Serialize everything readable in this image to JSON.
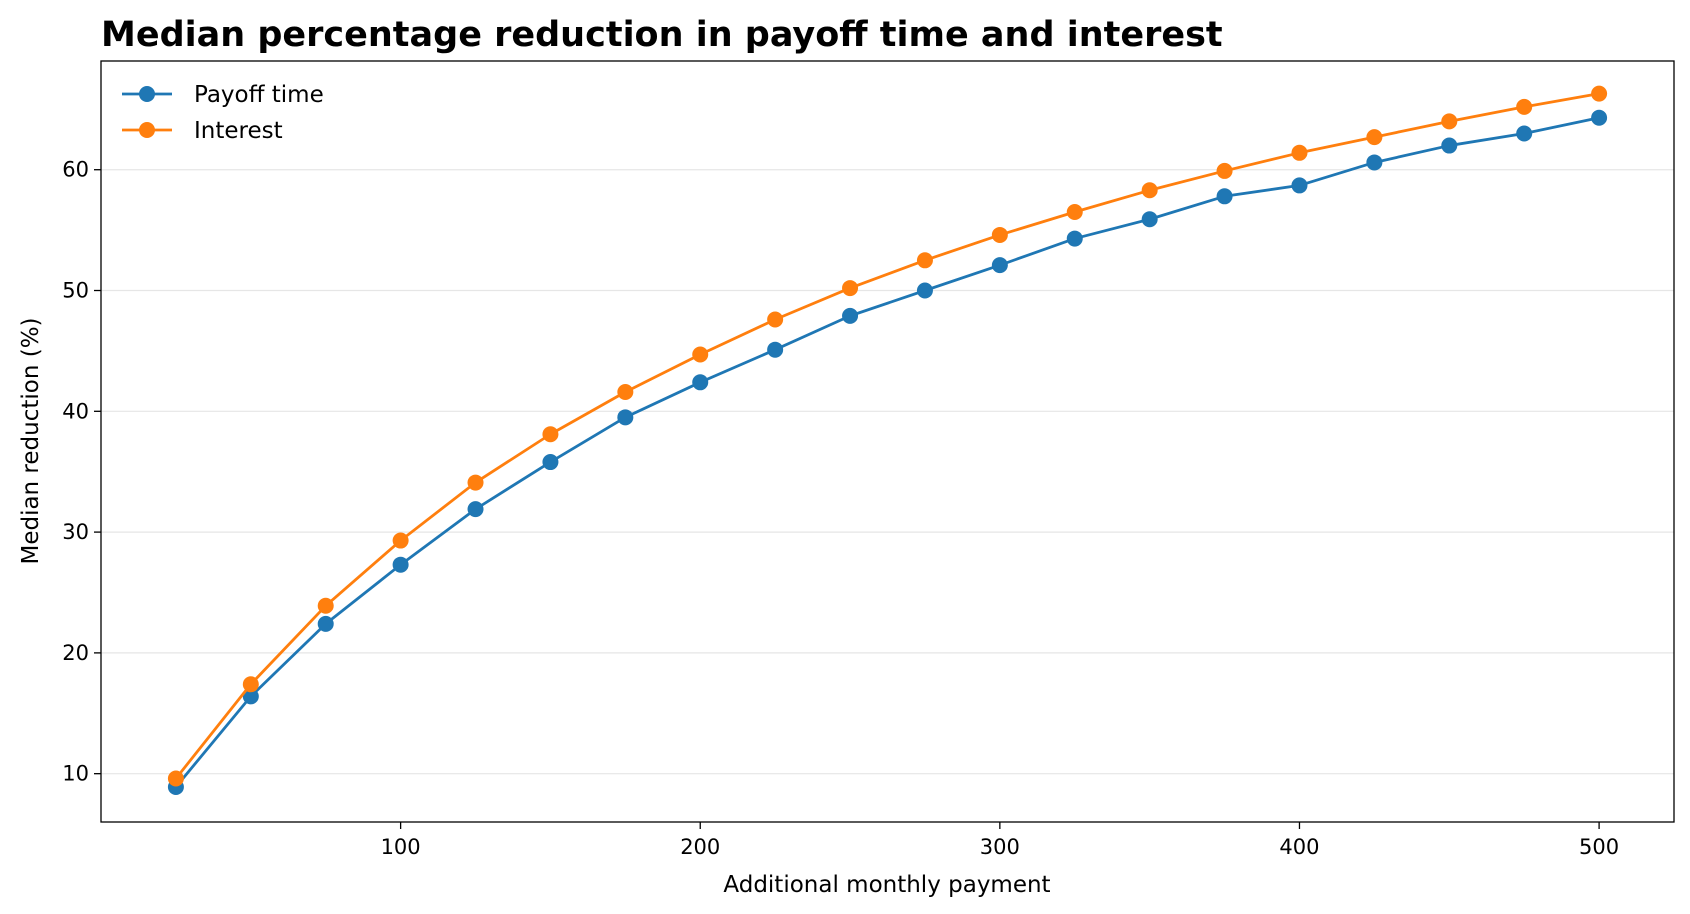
{
  "chart_data": {
    "type": "line",
    "title": "Median percentage reduction in payoff time and interest",
    "xlabel": "Additional monthly payment",
    "ylabel": "Median reduction (%)",
    "xlim": [
      0,
      525
    ],
    "ylim": [
      6,
      69
    ],
    "xticks": [
      100,
      200,
      300,
      400,
      500
    ],
    "yticks": [
      10,
      20,
      30,
      40,
      50,
      60
    ],
    "grid": "horizontal",
    "legend": "top-left",
    "x": [
      25,
      50,
      75,
      100,
      125,
      150,
      175,
      200,
      225,
      250,
      275,
      300,
      325,
      350,
      375,
      400,
      425,
      450,
      475,
      500
    ],
    "series": [
      {
        "name": "Payoff time",
        "color": "#1f77b4",
        "values": [
          8.9,
          16.4,
          22.4,
          27.3,
          31.9,
          35.8,
          39.5,
          42.4,
          45.1,
          47.9,
          50.0,
          52.1,
          54.3,
          55.9,
          57.8,
          58.7,
          60.6,
          62.0,
          63.0,
          64.3
        ]
      },
      {
        "name": "Interest",
        "color": "#ff7f0e",
        "values": [
          9.6,
          17.4,
          23.9,
          29.3,
          34.1,
          38.1,
          41.6,
          44.7,
          47.6,
          50.2,
          52.5,
          54.6,
          56.5,
          58.3,
          59.9,
          61.4,
          62.7,
          64.0,
          65.2,
          66.3
        ]
      }
    ]
  }
}
